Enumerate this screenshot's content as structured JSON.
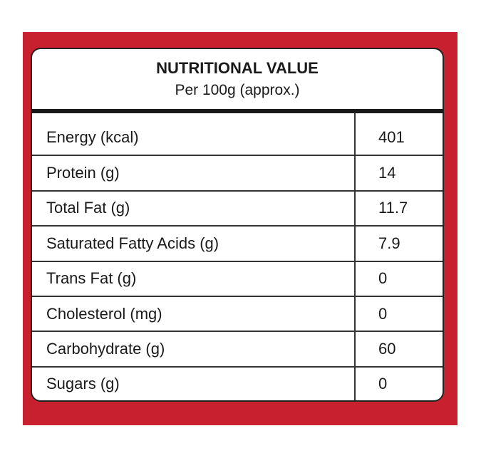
{
  "header": {
    "title": "NUTRITIONAL VALUE",
    "subtitle": "Per 100g (approx.)"
  },
  "table": {
    "rows": [
      [
        "Energy (kcal)",
        401
      ],
      [
        "Protein (g)",
        14
      ],
      [
        "Total Fat (g)",
        11.7
      ],
      [
        "Saturated Fatty Acids (g)",
        7.9
      ],
      [
        "Trans Fat (g)",
        0
      ],
      [
        "Cholesterol (mg)",
        0
      ],
      [
        "Carbohydrate (g)",
        60
      ],
      [
        "Sugars (g)",
        0
      ]
    ]
  }
}
